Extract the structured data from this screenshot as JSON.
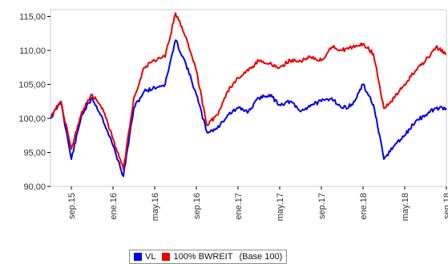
{
  "chart_data": {
    "type": "line",
    "title": "",
    "xlabel": "",
    "ylabel": "",
    "ylim": [
      90,
      116
    ],
    "yticks": [
      "90,00",
      "95,00",
      "100,00",
      "105,00",
      "110,00",
      "115,00"
    ],
    "ytick_values": [
      90,
      95,
      100,
      105,
      110,
      115
    ],
    "xlim": [
      "2015-07",
      "2018-09"
    ],
    "xticks": [
      "sep.15",
      "ene.16",
      "may.16",
      "sep.16",
      "ene.17",
      "may.17",
      "sep.17",
      "ene.18",
      "may.18",
      "sep.18"
    ],
    "xtick_positions": [
      "2015-09",
      "2016-01",
      "2016-05",
      "2016-09",
      "2017-01",
      "2017-05",
      "2017-09",
      "2018-01",
      "2018-05",
      "2018-09"
    ],
    "grid": false,
    "legend_position": "bottom",
    "legend_note": "(Base 100)",
    "x": [
      "2015-07",
      "2015-08",
      "2015-09",
      "2015-10",
      "2015-11",
      "2015-12",
      "2016-01",
      "2016-02",
      "2016-03",
      "2016-04",
      "2016-05",
      "2016-06",
      "2016-07",
      "2016-08",
      "2016-09",
      "2016-10",
      "2016-11",
      "2016-12",
      "2017-01",
      "2017-02",
      "2017-03",
      "2017-04",
      "2017-05",
      "2017-06",
      "2017-07",
      "2017-08",
      "2017-09",
      "2017-10",
      "2017-11",
      "2017-12",
      "2018-01",
      "2018-02",
      "2018-03",
      "2018-04",
      "2018-05",
      "2018-06",
      "2018-07",
      "2018-08",
      "2018-09"
    ],
    "series": [
      {
        "name": "VL",
        "color": "#0000ee",
        "values": [
          100.0,
          102.5,
          94.0,
          100.5,
          103.0,
          100.0,
          96.0,
          91.5,
          101.5,
          104.0,
          104.5,
          105.0,
          111.5,
          108.0,
          103.5,
          98.0,
          98.5,
          100.5,
          101.5,
          101.0,
          103.0,
          103.5,
          102.0,
          102.5,
          101.0,
          102.0,
          102.5,
          103.0,
          101.5,
          102.0,
          105.0,
          102.0,
          94.0,
          96.0,
          97.5,
          99.5,
          100.5,
          101.5,
          101.5
        ]
      },
      {
        "name": "100% BWREIT",
        "color": "#ee0000",
        "values": [
          100.5,
          102.5,
          95.5,
          101.0,
          103.5,
          101.5,
          97.0,
          92.5,
          103.0,
          107.5,
          108.5,
          109.0,
          115.5,
          112.0,
          107.0,
          99.0,
          100.5,
          104.0,
          106.0,
          107.0,
          108.5,
          108.0,
          107.5,
          108.5,
          108.5,
          109.0,
          108.5,
          110.5,
          110.0,
          110.5,
          111.0,
          109.5,
          101.5,
          103.0,
          105.0,
          107.0,
          108.5,
          110.5,
          109.5
        ]
      }
    ]
  }
}
